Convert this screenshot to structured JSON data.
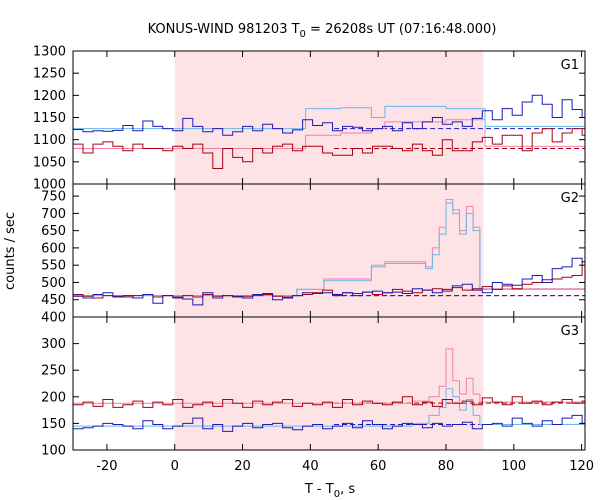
{
  "chart_data": {
    "type": "line",
    "title": "KONUS-WIND 981203 T",
    "title_sub": "0",
    "title_rest": " = 26208s UT (07:16:48.000)",
    "xlabel": "T - T",
    "xlabel_sub": "0",
    "xlabel_rest": ", s",
    "ylabel": "counts / sec",
    "xlim": [
      -30,
      121
    ],
    "xticks": [
      -20,
      0,
      20,
      40,
      60,
      80,
      100,
      120
    ],
    "xtick_labels": [
      "-20",
      "0",
      "20",
      "40",
      "60",
      "80",
      "100",
      "120"
    ],
    "highlight": {
      "x0": 0,
      "x1": 91,
      "color": "#fde3e6"
    },
    "colors": {
      "blue": "#1c1cb4",
      "lightblue": "#68b8e8",
      "red": "#a80010",
      "pink": "#f080b0"
    },
    "panels": [
      {
        "name": "G1",
        "ylim": [
          1000,
          1300
        ],
        "yticks": [
          1000,
          1050,
          1100,
          1150,
          1200,
          1250,
          1300
        ],
        "ytick_labels": [
          "1000",
          "1050",
          "1100",
          "1150",
          "1200",
          "1250",
          "1300"
        ],
        "bg_level": 1125,
        "bg_red_level": 1080,
        "blue_x0": -30,
        "dx": 2.944,
        "blue": [
          1123,
          1118,
          1120,
          1119,
          1121,
          1132,
          1120,
          1142,
          1130,
          1125,
          1120,
          1148,
          1130,
          1118,
          1125,
          1110,
          1118,
          1130,
          1120,
          1135,
          1125,
          1115,
          1122,
          1145,
          1132,
          1138,
          1120,
          1130,
          1128,
          1120,
          1125,
          1130,
          1120,
          1138,
          1125,
          1140,
          1150,
          1135,
          1140,
          1130,
          1148,
          1165,
          1145,
          1170,
          1155,
          1185,
          1200,
          1180,
          1150,
          1190,
          1168,
          1150,
          1195,
          1168,
          1155,
          1180,
          1175,
          1165,
          1160,
          1185,
          1180,
          1205,
          1185,
          1230,
          1180,
          1170,
          1228,
          1218,
          1200,
          1135,
          1130,
          1140,
          1125,
          1130,
          1128,
          1125,
          1118,
          1110,
          1120,
          1135,
          1128,
          1120,
          1130,
          1140,
          1125,
          1105,
          1138,
          1130,
          1120,
          1125,
          1140,
          1135,
          1100,
          1120,
          1140,
          1130,
          1135,
          1138,
          1120,
          1100,
          1135,
          1130,
          1120,
          1110
        ],
        "lightblue_x0": -30,
        "lightblue_dx": 2.944,
        "lightblue": [
          1125,
          1125,
          1125,
          1125,
          1125,
          1125,
          1125,
          1125,
          1125,
          1125,
          1125,
          1125,
          1125,
          1125,
          1125,
          1125,
          1125,
          1125,
          1125,
          1125,
          1125,
          1125,
          1125,
          1125,
          1125,
          1125,
          1125,
          1125,
          1125,
          1125,
          1125,
          1125,
          1125,
          1125,
          1125,
          1125,
          1125,
          1125,
          1125,
          1125,
          1125,
          1125,
          1125,
          1125,
          1125,
          1125,
          1125,
          1125,
          1125,
          1125,
          1125,
          1125,
          1125,
          1125,
          1125,
          1125,
          1125,
          1125,
          1125,
          1125,
          1125,
          1125,
          1125,
          1125,
          1125,
          1125,
          1125,
          1125,
          1125,
          1125,
          1125,
          1125,
          1125,
          1125,
          1125,
          1125,
          1125,
          1125,
          1125,
          1125,
          1125,
          1125,
          1125,
          1125,
          1125,
          1125,
          1125,
          1125,
          1125,
          1125,
          1125,
          1125,
          1125,
          1125,
          1125,
          1125,
          1125,
          1125,
          1125,
          1125,
          1125,
          1125,
          1125,
          1125
        ],
        "lightblue_steps": [
          [
            -30,
            1125
          ],
          [
            38.6,
            1170
          ],
          [
            49,
            1172
          ],
          [
            58,
            1150
          ],
          [
            62,
            1175
          ],
          [
            80,
            1170
          ],
          [
            91.5,
            1130
          ],
          [
            121,
            1125
          ]
        ],
        "red": [
          1090,
          1070,
          1090,
          1095,
          1085,
          1075,
          1090,
          1080,
          1080,
          1075,
          1085,
          1080,
          1090,
          1070,
          1035,
          1080,
          1060,
          1050,
          1080,
          1070,
          1085,
          1090,
          1075,
          1085,
          1085,
          1070,
          1065,
          1065,
          1080,
          1070,
          1085,
          1085,
          1080,
          1075,
          1090,
          1075,
          1065,
          1100,
          1075,
          1075,
          1095,
          1105,
          1090,
          1110,
          1110,
          1075,
          1115,
          1125,
          1095,
          1115,
          1125,
          1110,
          1120,
          1125,
          1150,
          1125,
          1110,
          1130,
          1115,
          1130,
          1120,
          1145,
          1115,
          1155,
          1165,
          1165,
          1135,
          1155,
          1125,
          1075,
          1085,
          1080,
          1085,
          1085,
          1080,
          1070,
          1080,
          1085,
          1090,
          1085,
          1075,
          1085,
          1080,
          1095,
          1080,
          1075,
          1065,
          1075,
          1080,
          1085,
          1080,
          1085,
          1075,
          1080,
          1090,
          1065,
          1085,
          1080,
          1075,
          1080,
          1090,
          1070,
          1080,
          1075
        ],
        "pink_steps": [
          [
            -30,
            1080
          ],
          [
            38.6,
            1110
          ],
          [
            49,
            1115
          ],
          [
            58,
            1125
          ],
          [
            62,
            1140
          ],
          [
            80,
            1145
          ],
          [
            91.5,
            1085
          ],
          [
            121,
            1080
          ]
        ]
      },
      {
        "name": "G2",
        "ylim": [
          400,
          785
        ],
        "yticks": [
          400,
          450,
          500,
          550,
          600,
          650,
          700,
          750
        ],
        "ytick_labels": [
          "400",
          "450",
          "500",
          "550",
          "600",
          "650",
          "700",
          "750"
        ],
        "bg_level": 462,
        "bg_red_level": 462,
        "blue_x0": -30,
        "dx": 2.944,
        "blue": [
          460,
          455,
          465,
          470,
          458,
          462,
          455,
          465,
          440,
          462,
          458,
          452,
          435,
          470,
          455,
          462,
          460,
          455,
          465,
          468,
          450,
          455,
          462,
          470,
          468,
          470,
          465,
          470,
          462,
          472,
          475,
          470,
          472,
          468,
          482,
          478,
          470,
          480,
          490,
          495,
          478,
          470,
          500,
          495,
          492,
          510,
          520,
          500,
          540,
          545,
          570,
          560,
          530,
          510,
          505,
          515,
          540,
          530,
          580,
          560,
          630,
          705,
          640,
          650,
          700,
          680,
          680,
          610,
          470,
          470,
          478,
          472,
          462,
          470,
          465,
          458,
          472,
          475,
          470,
          468,
          475,
          470,
          478,
          465,
          470,
          478,
          462,
          470,
          468,
          460,
          462,
          470,
          458,
          475,
          468,
          470,
          468,
          475,
          462,
          470,
          455,
          465,
          472,
          470
        ],
        "lightblue_steps": [
          [
            -30,
            462
          ],
          [
            36,
            480
          ],
          [
            44,
            505
          ],
          [
            58,
            545
          ],
          [
            62,
            555
          ],
          [
            74,
            540
          ],
          [
            76,
            580
          ],
          [
            78,
            640
          ],
          [
            80,
            730
          ],
          [
            82,
            700
          ],
          [
            84,
            640
          ],
          [
            86,
            700
          ],
          [
            88,
            650
          ],
          [
            90,
            480
          ],
          [
            121,
            462
          ]
        ],
        "red": [
          465,
          460,
          455,
          462,
          460,
          458,
          462,
          465,
          458,
          462,
          455,
          462,
          458,
          465,
          460,
          462,
          458,
          460,
          462,
          465,
          460,
          458,
          462,
          465,
          470,
          478,
          462,
          470,
          468,
          472,
          465,
          470,
          480,
          475,
          470,
          478,
          482,
          475,
          485,
          478,
          482,
          488,
          480,
          490,
          482,
          495,
          500,
          508,
          510,
          515,
          520,
          560,
          565,
          540,
          530,
          520,
          515,
          520,
          510,
          520,
          600,
          640,
          630,
          650,
          680,
          675,
          660,
          620,
          488,
          485,
          480,
          478,
          480,
          472,
          478,
          470,
          475,
          478,
          472,
          470,
          478,
          475,
          470,
          475,
          478,
          470,
          472,
          475,
          470,
          468,
          472,
          475,
          470,
          472,
          478,
          470,
          475,
          472,
          468,
          470,
          475,
          472,
          470,
          468
        ],
        "pink_steps": [
          [
            -30,
            462
          ],
          [
            36,
            480
          ],
          [
            44,
            510
          ],
          [
            58,
            550
          ],
          [
            62,
            560
          ],
          [
            74,
            545
          ],
          [
            76,
            600
          ],
          [
            78,
            660
          ],
          [
            80,
            740
          ],
          [
            82,
            710
          ],
          [
            84,
            650
          ],
          [
            86,
            720
          ],
          [
            88,
            660
          ],
          [
            90,
            482
          ],
          [
            121,
            470
          ]
        ]
      },
      {
        "name": "G3",
        "ylim": [
          100,
          350
        ],
        "yticks": [
          100,
          150,
          200,
          250,
          300
        ],
        "ytick_labels": [
          "100",
          "150",
          "200",
          "250",
          "300"
        ],
        "bg_level": 148,
        "bg_red_level": 188,
        "blue_x0": -30,
        "dx": 2.944,
        "blue": [
          140,
          142,
          145,
          150,
          148,
          145,
          140,
          155,
          148,
          140,
          145,
          150,
          160,
          140,
          148,
          135,
          145,
          150,
          142,
          148,
          150,
          142,
          138,
          145,
          148,
          140,
          145,
          150,
          142,
          155,
          148,
          140,
          145,
          150,
          148,
          142,
          150,
          145,
          148,
          152,
          140,
          148,
          150,
          145,
          160,
          150,
          145,
          155,
          148,
          160,
          165,
          150,
          148,
          160,
          150,
          155,
          145,
          160,
          150,
          165,
          185,
          200,
          190,
          215,
          230,
          175,
          150,
          145,
          150,
          145,
          148,
          150,
          145,
          142,
          148,
          150,
          152,
          145,
          148,
          150,
          142,
          148,
          150,
          155,
          148,
          145,
          150,
          152,
          148,
          145,
          150,
          148,
          152,
          145,
          150,
          148,
          145,
          150,
          152,
          148,
          145,
          150,
          148,
          150
        ],
        "lightblue_steps": [
          [
            -30,
            145
          ],
          [
            70,
            150
          ],
          [
            75,
            165
          ],
          [
            78,
            180
          ],
          [
            80,
            215
          ],
          [
            82,
            200
          ],
          [
            84,
            175
          ],
          [
            86,
            195
          ],
          [
            88,
            165
          ],
          [
            90,
            148
          ],
          [
            121,
            148
          ]
        ],
        "red": [
          185,
          190,
          182,
          195,
          180,
          185,
          192,
          180,
          190,
          185,
          195,
          180,
          185,
          190,
          182,
          195,
          188,
          180,
          192,
          185,
          190,
          195,
          182,
          188,
          185,
          190,
          180,
          195,
          185,
          192,
          188,
          185,
          190,
          200,
          185,
          190,
          182,
          195,
          188,
          192,
          185,
          198,
          190,
          185,
          200,
          188,
          192,
          185,
          190,
          195,
          188,
          192,
          205,
          190,
          195,
          188,
          200,
          192,
          195,
          188,
          210,
          240,
          230,
          250,
          235,
          215,
          205,
          188,
          190,
          195,
          188,
          190,
          192,
          185,
          188,
          195,
          190,
          188,
          192,
          185,
          190,
          195,
          188,
          190,
          185,
          192,
          190,
          188,
          195,
          185,
          190,
          192,
          188,
          190,
          195,
          188,
          192,
          185,
          190,
          195,
          188,
          190,
          185,
          190
        ],
        "pink_steps": [
          [
            -30,
            188
          ],
          [
            70,
            192
          ],
          [
            75,
            200
          ],
          [
            78,
            220
          ],
          [
            80,
            290
          ],
          [
            82,
            230
          ],
          [
            84,
            205
          ],
          [
            86,
            235
          ],
          [
            88,
            205
          ],
          [
            90,
            190
          ],
          [
            121,
            188
          ]
        ]
      }
    ]
  }
}
